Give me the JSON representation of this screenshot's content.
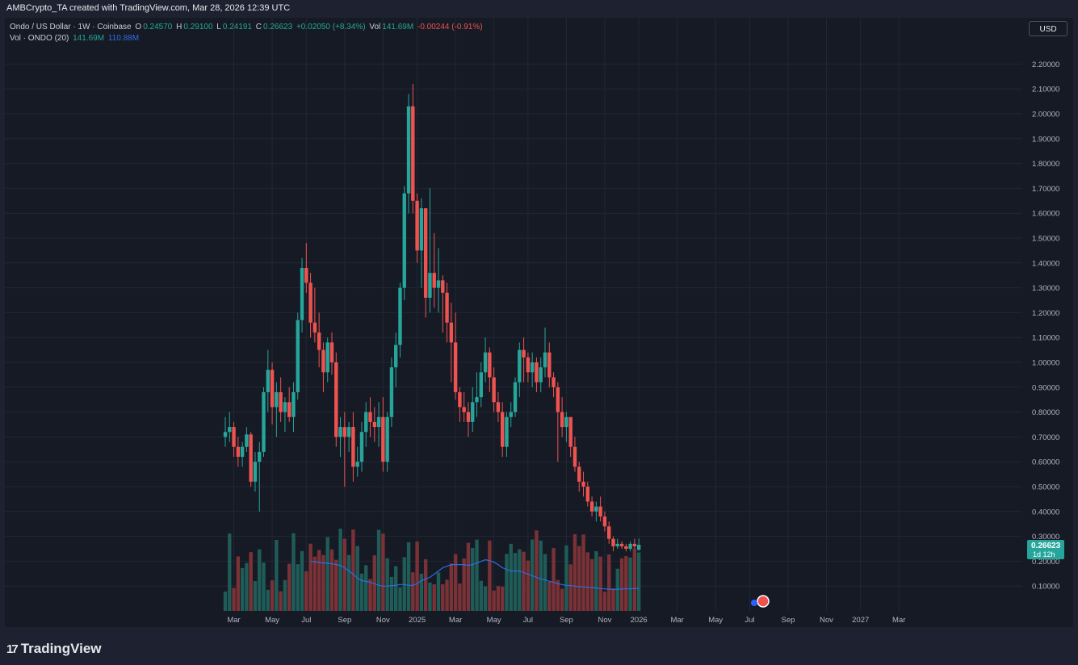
{
  "header": {
    "snapshot_text": "AMBCrypto_TA created with TradingView.com, Mar 28, 2026 12:39 UTC"
  },
  "legend": {
    "symbol": "Ondo / US Dollar · 1W · Coinbase",
    "o_label": "O",
    "o_value": "0.24570",
    "h_label": "H",
    "h_value": "0.29100",
    "l_label": "L",
    "l_value": "0.24191",
    "c_label": "C",
    "c_value": "0.26623",
    "change": "+0.02050 (+8.34%)",
    "vol_label": "Vol",
    "vol_value": "141.69M",
    "vol_change": "-0.00244 (-0.91%)",
    "vol_row_label": "Vol · ONDO (20)",
    "vol_row_value": "141.69M",
    "vol_row_ma": "110.88M"
  },
  "toolbar": {
    "currency_label": "USD"
  },
  "branding": {
    "logo_mark": "17",
    "logo_text": "TradingView"
  },
  "price_tag": {
    "value": "0.26623",
    "countdown": "1d 12h"
  },
  "colors": {
    "up": "#26a69a",
    "down": "#ef5350",
    "vol_up": "#1f5c57",
    "vol_down": "#7a3236",
    "vol_ma": "#2f6ce0",
    "background": "#161a25"
  },
  "chart_data": {
    "type": "candlestick",
    "interval": "1W",
    "price_axis": {
      "ylim": [
        0.0,
        2.3
      ],
      "ticks": [
        "0.10000",
        "0.20000",
        "0.30000",
        "0.40000",
        "0.50000",
        "0.60000",
        "0.70000",
        "0.80000",
        "0.90000",
        "1.00000",
        "1.10000",
        "1.20000",
        "1.30000",
        "1.40000",
        "1.50000",
        "1.60000",
        "1.70000",
        "1.80000",
        "1.90000",
        "2.00000",
        "2.10000",
        "2.20000"
      ]
    },
    "time_axis": {
      "labels": [
        "Mar",
        "May",
        "Jul",
        "Sep",
        "Nov",
        "2025",
        "Mar",
        "May",
        "Jul",
        "Sep",
        "Nov",
        "2026",
        "Mar",
        "May",
        "Jul",
        "Sep",
        "Nov",
        "2027",
        "Mar"
      ],
      "label_weeks": [
        2,
        11,
        19,
        28,
        37,
        45,
        54,
        63,
        71,
        80,
        89,
        97,
        106,
        115,
        123,
        132,
        141,
        149,
        158
      ]
    },
    "volume_ma_label": "Vol · ONDO (20)",
    "candles": [
      [
        0.7,
        0.78,
        0.66,
        0.72
      ],
      [
        0.72,
        0.8,
        0.68,
        0.74
      ],
      [
        0.74,
        0.76,
        0.62,
        0.66
      ],
      [
        0.66,
        0.7,
        0.58,
        0.62
      ],
      [
        0.62,
        0.68,
        0.58,
        0.66
      ],
      [
        0.66,
        0.74,
        0.64,
        0.71
      ],
      [
        0.71,
        0.72,
        0.5,
        0.52
      ],
      [
        0.52,
        0.64,
        0.48,
        0.6
      ],
      [
        0.6,
        0.68,
        0.4,
        0.64
      ],
      [
        0.64,
        0.9,
        0.62,
        0.88
      ],
      [
        0.88,
        1.05,
        0.8,
        0.97
      ],
      [
        0.97,
        1.0,
        0.75,
        0.82
      ],
      [
        0.82,
        0.92,
        0.7,
        0.88
      ],
      [
        0.88,
        0.94,
        0.76,
        0.8
      ],
      [
        0.8,
        0.86,
        0.72,
        0.84
      ],
      [
        0.84,
        0.9,
        0.76,
        0.78
      ],
      [
        0.78,
        0.92,
        0.72,
        0.88
      ],
      [
        0.88,
        1.2,
        0.85,
        1.17
      ],
      [
        1.17,
        1.42,
        1.12,
        1.38
      ],
      [
        1.38,
        1.48,
        1.28,
        1.32
      ],
      [
        1.32,
        1.36,
        1.1,
        1.16
      ],
      [
        1.16,
        1.3,
        1.08,
        1.12
      ],
      [
        1.12,
        1.2,
        0.98,
        1.05
      ],
      [
        1.05,
        1.08,
        0.88,
        0.96
      ],
      [
        0.96,
        1.1,
        0.92,
        1.08
      ],
      [
        1.08,
        1.12,
        0.95,
        1.0
      ],
      [
        1.0,
        1.04,
        0.66,
        0.7
      ],
      [
        0.7,
        0.78,
        0.62,
        0.74
      ],
      [
        0.74,
        0.8,
        0.5,
        0.7
      ],
      [
        0.7,
        0.76,
        0.64,
        0.74
      ],
      [
        0.74,
        0.8,
        0.52,
        0.58
      ],
      [
        0.58,
        0.66,
        0.54,
        0.6
      ],
      [
        0.6,
        0.76,
        0.56,
        0.72
      ],
      [
        0.72,
        0.84,
        0.66,
        0.8
      ],
      [
        0.8,
        0.86,
        0.7,
        0.76
      ],
      [
        0.76,
        0.82,
        0.68,
        0.74
      ],
      [
        0.74,
        0.84,
        0.66,
        0.78
      ],
      [
        0.78,
        0.86,
        0.56,
        0.6
      ],
      [
        0.6,
        0.8,
        0.56,
        0.78
      ],
      [
        0.78,
        1.02,
        0.74,
        0.98
      ],
      [
        0.98,
        1.12,
        0.9,
        1.07
      ],
      [
        1.07,
        1.32,
        1.02,
        1.3
      ],
      [
        1.3,
        1.71,
        1.25,
        1.68
      ],
      [
        1.68,
        2.08,
        1.6,
        2.03
      ],
      [
        2.03,
        2.12,
        1.6,
        1.65
      ],
      [
        1.65,
        1.68,
        1.4,
        1.45
      ],
      [
        1.45,
        1.66,
        1.3,
        1.62
      ],
      [
        1.62,
        1.62,
        1.18,
        1.26
      ],
      [
        1.26,
        1.7,
        1.2,
        1.36
      ],
      [
        1.36,
        1.52,
        1.22,
        1.3
      ],
      [
        1.3,
        1.46,
        1.2,
        1.33
      ],
      [
        1.33,
        1.35,
        1.12,
        1.28
      ],
      [
        1.28,
        1.32,
        1.08,
        1.16
      ],
      [
        1.16,
        1.24,
        0.92,
        1.08
      ],
      [
        1.08,
        1.2,
        0.85,
        0.88
      ],
      [
        0.88,
        0.9,
        0.76,
        0.82
      ],
      [
        0.82,
        0.88,
        0.76,
        0.8
      ],
      [
        0.8,
        0.84,
        0.7,
        0.76
      ],
      [
        0.76,
        0.9,
        0.72,
        0.84
      ],
      [
        0.84,
        0.96,
        0.78,
        0.86
      ],
      [
        0.86,
        1.0,
        0.82,
        0.96
      ],
      [
        0.96,
        1.1,
        0.92,
        1.04
      ],
      [
        1.04,
        1.06,
        0.88,
        0.94
      ],
      [
        0.94,
        0.98,
        0.8,
        0.84
      ],
      [
        0.84,
        0.88,
        0.76,
        0.8
      ],
      [
        0.8,
        0.84,
        0.62,
        0.66
      ],
      [
        0.66,
        0.8,
        0.62,
        0.78
      ],
      [
        0.78,
        0.84,
        0.74,
        0.8
      ],
      [
        0.8,
        0.94,
        0.78,
        0.92
      ],
      [
        0.92,
        1.08,
        0.86,
        1.05
      ],
      [
        1.05,
        1.1,
        0.92,
        1.02
      ],
      [
        1.02,
        1.04,
        0.92,
        0.96
      ],
      [
        0.96,
        1.04,
        0.9,
        1.0
      ],
      [
        1.0,
        1.02,
        0.88,
        0.92
      ],
      [
        0.92,
        1.02,
        0.88,
        0.98
      ],
      [
        0.98,
        1.14,
        0.94,
        1.04
      ],
      [
        1.04,
        1.08,
        0.9,
        0.94
      ],
      [
        0.94,
        0.96,
        0.86,
        0.9
      ],
      [
        0.9,
        0.92,
        0.6,
        0.8
      ],
      [
        0.8,
        0.86,
        0.7,
        0.74
      ],
      [
        0.74,
        0.8,
        0.68,
        0.78
      ],
      [
        0.78,
        0.78,
        0.62,
        0.66
      ],
      [
        0.66,
        0.7,
        0.56,
        0.58
      ],
      [
        0.58,
        0.6,
        0.48,
        0.52
      ],
      [
        0.52,
        0.56,
        0.46,
        0.5
      ],
      [
        0.5,
        0.52,
        0.42,
        0.44
      ],
      [
        0.44,
        0.46,
        0.38,
        0.4
      ],
      [
        0.4,
        0.44,
        0.36,
        0.42
      ],
      [
        0.42,
        0.46,
        0.36,
        0.38
      ],
      [
        0.38,
        0.4,
        0.32,
        0.34
      ],
      [
        0.34,
        0.36,
        0.27,
        0.29
      ],
      [
        0.29,
        0.3,
        0.24,
        0.26
      ],
      [
        0.26,
        0.29,
        0.25,
        0.27
      ],
      [
        0.27,
        0.28,
        0.25,
        0.26
      ],
      [
        0.26,
        0.27,
        0.24,
        0.25
      ],
      [
        0.25,
        0.28,
        0.24,
        0.27
      ],
      [
        0.27,
        0.29,
        0.25,
        0.26
      ],
      [
        0.246,
        0.291,
        0.242,
        0.266
      ]
    ],
    "volume_ma": [
      0.31,
      0.308,
      0.305,
      0.3,
      0.3,
      0.295,
      0.29,
      0.285,
      0.27,
      0.25,
      0.23,
      0.205,
      0.19,
      0.185,
      0.18,
      0.17,
      0.16,
      0.155,
      0.155,
      0.158,
      0.16,
      0.165,
      0.165,
      0.16,
      0.16,
      0.17,
      0.19,
      0.2,
      0.21,
      0.23,
      0.25,
      0.27,
      0.28,
      0.29,
      0.29,
      0.29,
      0.29,
      0.285,
      0.29,
      0.3,
      0.31,
      0.32,
      0.315,
      0.305,
      0.29,
      0.27,
      0.26,
      0.25,
      0.25,
      0.25,
      0.24,
      0.23,
      0.22,
      0.21,
      0.2,
      0.195,
      0.185,
      0.18,
      0.17,
      0.165,
      0.16,
      0.158,
      0.155,
      0.152,
      0.15,
      0.148,
      0.146,
      0.144,
      0.14,
      0.138,
      0.136,
      0.135,
      0.136,
      0.137,
      0.138,
      0.139,
      0.14,
      0.141
    ],
    "volume_ma_start_week": 20
  }
}
